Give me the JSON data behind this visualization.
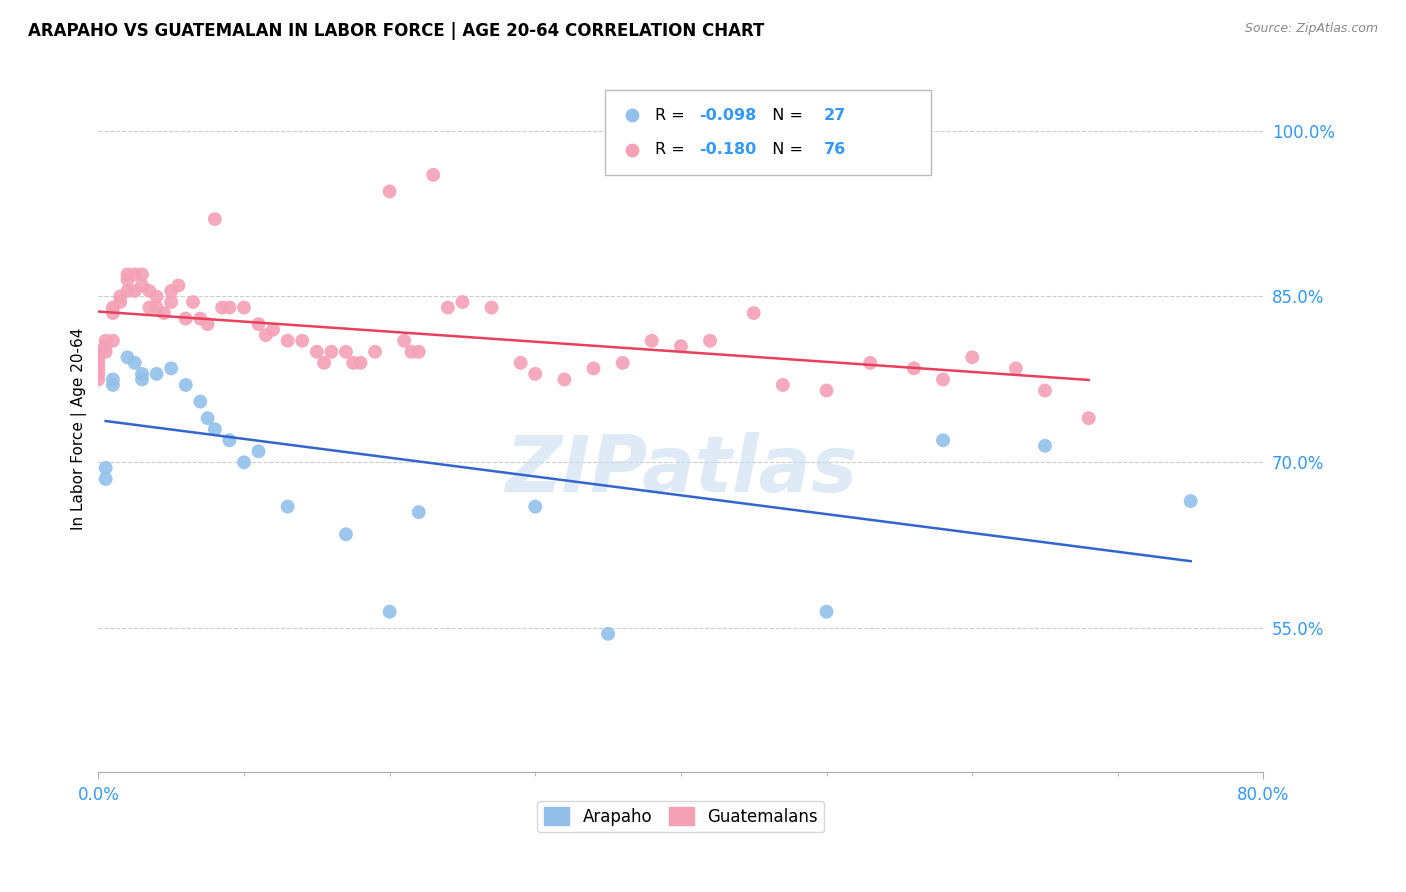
{
  "title": "ARAPAHO VS GUATEMALAN IN LABOR FORCE | AGE 20-64 CORRELATION CHART",
  "source": "Source: ZipAtlas.com",
  "ylabel": "In Labor Force | Age 20-64",
  "xlim": [
    0.0,
    0.8
  ],
  "ylim": [
    0.42,
    1.04
  ],
  "yticks": [
    0.55,
    0.7,
    0.85,
    1.0
  ],
  "ytick_labels": [
    "55.0%",
    "70.0%",
    "85.0%",
    "100.0%"
  ],
  "xtick_labels": [
    "0.0%",
    "80.0%"
  ],
  "xticks": [
    0.0,
    0.8
  ],
  "minor_xticks": [
    0.1,
    0.2,
    0.3,
    0.4,
    0.5,
    0.6,
    0.7
  ],
  "R_arapaho": -0.098,
  "N_arapaho": 27,
  "R_guatemalan": -0.18,
  "N_guatemalan": 76,
  "arapaho_color": "#92C0EA",
  "guatemalan_color": "#F4A0B5",
  "arapaho_line_color": "#3366CC",
  "guatemalan_line_color": "#E8405A",
  "watermark": "ZIPatlas",
  "arapaho_x": [
    0.005,
    0.005,
    0.01,
    0.01,
    0.02,
    0.025,
    0.03,
    0.03,
    0.04,
    0.05,
    0.06,
    0.07,
    0.075,
    0.08,
    0.09,
    0.1,
    0.11,
    0.13,
    0.17,
    0.2,
    0.22,
    0.3,
    0.35,
    0.5,
    0.58,
    0.65,
    0.75
  ],
  "arapaho_y": [
    0.695,
    0.685,
    0.775,
    0.77,
    0.795,
    0.79,
    0.78,
    0.775,
    0.78,
    0.785,
    0.77,
    0.755,
    0.74,
    0.73,
    0.72,
    0.7,
    0.71,
    0.66,
    0.635,
    0.565,
    0.655,
    0.66,
    0.545,
    0.565,
    0.72,
    0.715,
    0.665
  ],
  "guatemalan_x": [
    0.0,
    0.0,
    0.0,
    0.0,
    0.0,
    0.0,
    0.0,
    0.005,
    0.005,
    0.005,
    0.01,
    0.01,
    0.01,
    0.015,
    0.015,
    0.02,
    0.02,
    0.02,
    0.025,
    0.025,
    0.03,
    0.03,
    0.035,
    0.035,
    0.04,
    0.04,
    0.045,
    0.05,
    0.05,
    0.055,
    0.06,
    0.065,
    0.07,
    0.075,
    0.08,
    0.085,
    0.09,
    0.1,
    0.11,
    0.115,
    0.12,
    0.13,
    0.14,
    0.15,
    0.155,
    0.16,
    0.17,
    0.175,
    0.18,
    0.19,
    0.2,
    0.21,
    0.215,
    0.22,
    0.23,
    0.24,
    0.25,
    0.27,
    0.29,
    0.3,
    0.32,
    0.34,
    0.36,
    0.38,
    0.4,
    0.42,
    0.45,
    0.47,
    0.5,
    0.53,
    0.56,
    0.58,
    0.6,
    0.63,
    0.65,
    0.68
  ],
  "guatemalan_y": [
    0.8,
    0.8,
    0.795,
    0.79,
    0.785,
    0.78,
    0.775,
    0.81,
    0.805,
    0.8,
    0.84,
    0.835,
    0.81,
    0.85,
    0.845,
    0.87,
    0.865,
    0.855,
    0.87,
    0.855,
    0.87,
    0.86,
    0.855,
    0.84,
    0.85,
    0.84,
    0.835,
    0.855,
    0.845,
    0.86,
    0.83,
    0.845,
    0.83,
    0.825,
    0.92,
    0.84,
    0.84,
    0.84,
    0.825,
    0.815,
    0.82,
    0.81,
    0.81,
    0.8,
    0.79,
    0.8,
    0.8,
    0.79,
    0.79,
    0.8,
    0.945,
    0.81,
    0.8,
    0.8,
    0.96,
    0.84,
    0.845,
    0.84,
    0.79,
    0.78,
    0.775,
    0.785,
    0.79,
    0.81,
    0.805,
    0.81,
    0.835,
    0.77,
    0.765,
    0.79,
    0.785,
    0.775,
    0.795,
    0.785,
    0.765,
    0.74
  ]
}
